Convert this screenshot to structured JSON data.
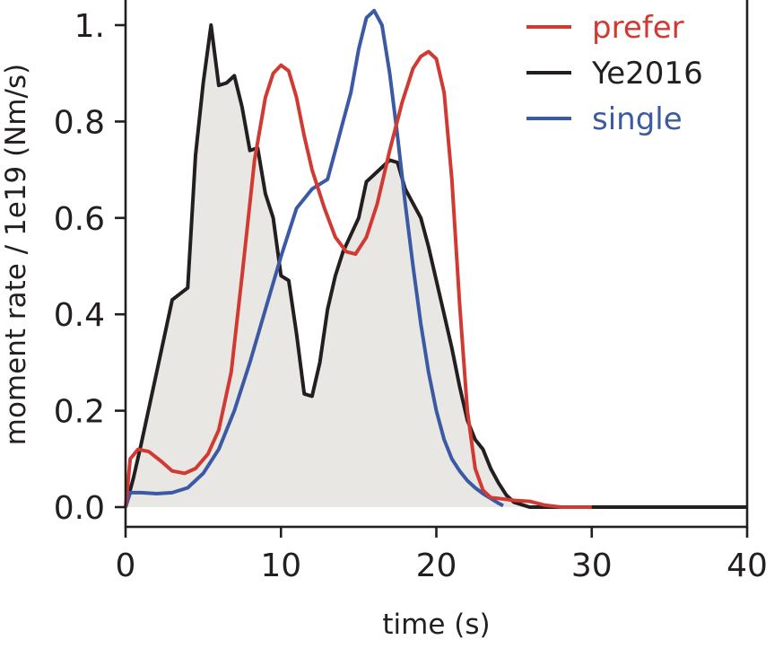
{
  "chart_data": {
    "type": "line",
    "title": "",
    "xlabel": "time (s)",
    "ylabel": "moment rate / 1e19 (Nm/s)",
    "xlim": [
      0,
      40
    ],
    "ylim": [
      -0.02,
      1.03
    ],
    "xticks": [
      0,
      10,
      20,
      30,
      40
    ],
    "xtick_labels": [
      "0",
      "10",
      "20",
      "30",
      "40"
    ],
    "yticks": [
      0.0,
      0.2,
      0.4,
      0.6,
      0.8,
      1.0
    ],
    "ytick_labels": [
      "0.0",
      "0.2",
      "0.4",
      "0.6",
      "0.8",
      "1."
    ],
    "grid": false,
    "legend_position": "top-right",
    "series": [
      {
        "name": "prefer",
        "color": "#d13a32",
        "x": [
          0,
          0.3,
          0.8,
          1.5,
          2.3,
          3.0,
          3.8,
          4.5,
          5.3,
          6.0,
          6.8,
          7.5,
          8.3,
          9.0,
          9.5,
          10.0,
          10.5,
          11.0,
          11.5,
          12.0,
          12.8,
          13.5,
          14.2,
          14.8,
          15.5,
          16.2,
          17.0,
          17.8,
          18.5,
          19.0,
          19.5,
          20.0,
          20.5,
          21.0,
          21.5,
          22.0,
          22.5,
          23.0,
          23.5,
          24.0,
          25.0,
          26.0,
          27.0,
          28.0,
          29.0,
          30.0
        ],
        "values": [
          0.0,
          0.1,
          0.12,
          0.115,
          0.095,
          0.075,
          0.07,
          0.08,
          0.11,
          0.16,
          0.28,
          0.48,
          0.72,
          0.85,
          0.9,
          0.917,
          0.905,
          0.85,
          0.77,
          0.7,
          0.62,
          0.56,
          0.53,
          0.525,
          0.56,
          0.63,
          0.74,
          0.84,
          0.91,
          0.935,
          0.945,
          0.93,
          0.86,
          0.68,
          0.42,
          0.2,
          0.08,
          0.035,
          0.02,
          0.018,
          0.014,
          0.012,
          0.004,
          0.0,
          0.0,
          0.0
        ]
      },
      {
        "name": "Ye2016",
        "color": "#231f20",
        "x": [
          0,
          0.5,
          1.0,
          2.0,
          3.0,
          4.0,
          4.5,
          5.0,
          5.5,
          6.0,
          6.5,
          7.0,
          7.5,
          8.0,
          8.5,
          9.0,
          9.5,
          10.0,
          10.5,
          11.0,
          11.5,
          12.0,
          12.5,
          13.0,
          13.5,
          14.0,
          15.0,
          15.5,
          16.0,
          16.5,
          17.0,
          17.5,
          18.0,
          18.5,
          19.0,
          19.5,
          20.0,
          20.5,
          21.0,
          21.5,
          22.0,
          22.5,
          23.0,
          23.5,
          24.0,
          24.5,
          25.0,
          25.5,
          26.0,
          27.0,
          28.0,
          30.0,
          40.0
        ],
        "values": [
          0.0,
          0.06,
          0.13,
          0.28,
          0.43,
          0.455,
          0.73,
          0.88,
          1.0,
          0.875,
          0.88,
          0.895,
          0.83,
          0.74,
          0.745,
          0.65,
          0.6,
          0.48,
          0.47,
          0.36,
          0.235,
          0.23,
          0.3,
          0.41,
          0.48,
          0.53,
          0.6,
          0.675,
          0.69,
          0.705,
          0.72,
          0.715,
          0.66,
          0.63,
          0.6,
          0.54,
          0.47,
          0.4,
          0.33,
          0.25,
          0.18,
          0.14,
          0.12,
          0.08,
          0.05,
          0.025,
          0.01,
          0.005,
          0.0,
          0.0,
          0.0,
          0.0,
          0.0
        ]
      },
      {
        "name": "single",
        "color": "#3b5aa3",
        "x": [
          0,
          0.3,
          1.0,
          2.0,
          3.0,
          4.0,
          5.0,
          6.0,
          7.0,
          8.0,
          9.0,
          10.0,
          11.0,
          12.0,
          13.0,
          13.5,
          14.0,
          14.5,
          15.0,
          15.5,
          16.0,
          16.5,
          17.0,
          17.5,
          18.0,
          18.5,
          19.0,
          19.5,
          20.0,
          20.5,
          21.0,
          21.5,
          22.0,
          22.5,
          23.0,
          23.5,
          24.0,
          24.3
        ],
        "values": [
          0.0,
          0.03,
          0.03,
          0.028,
          0.03,
          0.04,
          0.07,
          0.12,
          0.2,
          0.3,
          0.41,
          0.52,
          0.62,
          0.66,
          0.68,
          0.74,
          0.8,
          0.86,
          0.95,
          1.015,
          1.03,
          1.0,
          0.9,
          0.77,
          0.63,
          0.5,
          0.38,
          0.28,
          0.2,
          0.14,
          0.1,
          0.075,
          0.055,
          0.04,
          0.028,
          0.018,
          0.008,
          0.003
        ]
      }
    ]
  },
  "legend": {
    "items": [
      {
        "label": "prefer",
        "color": "#d13a32"
      },
      {
        "label": "Ye2016",
        "color": "#231f20"
      },
      {
        "label": "single",
        "color": "#3b5aa3"
      }
    ]
  },
  "fill_color": "#e8e7e4"
}
